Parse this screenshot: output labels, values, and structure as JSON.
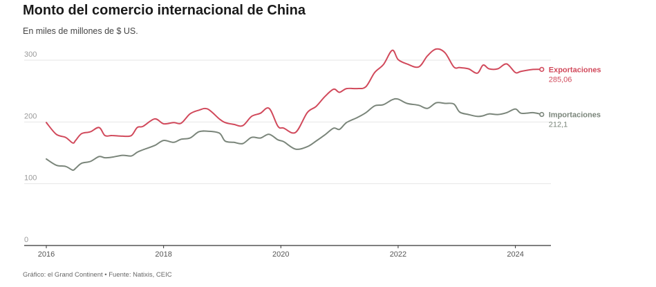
{
  "title": "Monto del comercio internacional de China",
  "subtitle": "En miles de millones de $ US.",
  "footer": "Gráfico: el Grand Continent • Fuente: Natixis, CEIC",
  "colors": {
    "exports": "#d1495b",
    "imports": "#7a857a",
    "grid": "#e6e6e6",
    "axis": "#333333"
  },
  "chart_data": {
    "type": "line",
    "title": "Monto del comercio internacional de China",
    "subtitle": "En miles de millones de $ US.",
    "ylim": [
      0,
      300
    ],
    "yticks": [
      0,
      100,
      200,
      300
    ],
    "xlim": [
      2016,
      2024.5
    ],
    "xticks": [
      2016,
      2018,
      2020,
      2022,
      2024
    ],
    "grid": true,
    "legend": "end-of-line labels",
    "series": [
      {
        "name": "Exportaciones",
        "end_label": "285,06",
        "x": [
          2016.0,
          2016.17,
          2016.33,
          2016.45,
          2016.5,
          2016.6,
          2016.75,
          2016.9,
          2017.0,
          2017.12,
          2017.3,
          2017.45,
          2017.55,
          2017.65,
          2017.85,
          2018.0,
          2018.17,
          2018.3,
          2018.45,
          2018.6,
          2018.75,
          2018.95,
          2019.05,
          2019.2,
          2019.35,
          2019.5,
          2019.65,
          2019.8,
          2019.95,
          2020.05,
          2020.25,
          2020.45,
          2020.6,
          2020.75,
          2020.9,
          2021.0,
          2021.12,
          2021.3,
          2021.45,
          2021.6,
          2021.75,
          2021.9,
          2022.0,
          2022.15,
          2022.35,
          2022.5,
          2022.65,
          2022.8,
          2022.95,
          2023.05,
          2023.2,
          2023.35,
          2023.45,
          2023.55,
          2023.7,
          2023.85,
          2024.0,
          2024.1,
          2024.3,
          2024.45
        ],
        "values": [
          199,
          180,
          175,
          166,
          170,
          181,
          184,
          191,
          178,
          178,
          177,
          178,
          191,
          193,
          205,
          197,
          199,
          198,
          213,
          219,
          221,
          205,
          199,
          196,
          194,
          209,
          214,
          222,
          193,
          190,
          183,
          215,
          225,
          241,
          253,
          248,
          254,
          254,
          257,
          280,
          293,
          316,
          301,
          294,
          289,
          307,
          318,
          312,
          289,
          288,
          286,
          279,
          292,
          286,
          286,
          294,
          280,
          282,
          285,
          285.06
        ]
      },
      {
        "name": "Importaciones",
        "end_label": "212,1",
        "x": [
          2016.0,
          2016.17,
          2016.33,
          2016.45,
          2016.5,
          2016.6,
          2016.75,
          2016.9,
          2017.0,
          2017.12,
          2017.3,
          2017.45,
          2017.55,
          2017.65,
          2017.85,
          2018.0,
          2018.17,
          2018.3,
          2018.45,
          2018.6,
          2018.75,
          2018.95,
          2019.05,
          2019.2,
          2019.35,
          2019.5,
          2019.65,
          2019.8,
          2019.95,
          2020.05,
          2020.25,
          2020.45,
          2020.6,
          2020.75,
          2020.9,
          2021.0,
          2021.12,
          2021.3,
          2021.45,
          2021.6,
          2021.75,
          2021.9,
          2022.0,
          2022.15,
          2022.35,
          2022.5,
          2022.65,
          2022.8,
          2022.95,
          2023.05,
          2023.2,
          2023.35,
          2023.45,
          2023.55,
          2023.7,
          2023.85,
          2024.0,
          2024.1,
          2024.3,
          2024.45
        ],
        "values": [
          140,
          130,
          128,
          122,
          125,
          133,
          136,
          144,
          142,
          143,
          146,
          145,
          151,
          155,
          162,
          170,
          167,
          172,
          174,
          184,
          185,
          182,
          169,
          167,
          165,
          175,
          174,
          180,
          171,
          168,
          156,
          160,
          169,
          179,
          190,
          188,
          199,
          207,
          215,
          226,
          228,
          236,
          237,
          230,
          227,
          222,
          231,
          230,
          229,
          216,
          212,
          209,
          210,
          213,
          212,
          215,
          221,
          214,
          215,
          212.1
        ]
      }
    ]
  }
}
